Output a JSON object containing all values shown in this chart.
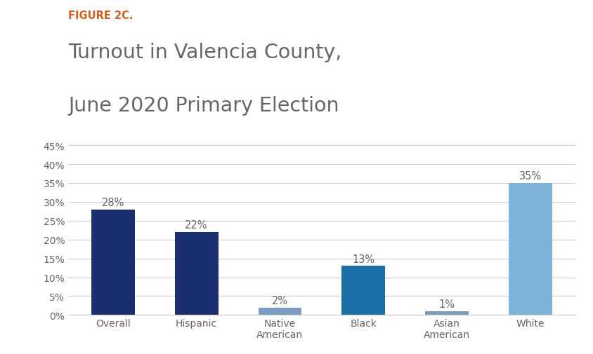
{
  "figure_label": "FIGURE 2C.",
  "title_line1": "Turnout in Valencia County,",
  "title_line2": "June 2020 Primary Election",
  "categories": [
    "Overall",
    "Hispanic",
    "Native\nAmerican",
    "Black",
    "Asian\nAmerican",
    "White"
  ],
  "values": [
    28,
    22,
    2,
    13,
    1,
    35
  ],
  "bar_colors": [
    "#1b2f6e",
    "#1b2f6e",
    "#7a9cbf",
    "#1e6fa8",
    "#7a9cbf",
    "#7fb3d9"
  ],
  "label_color": "#666666",
  "figure_label_color": "#d45f1e",
  "title_color": "#666666",
  "ylim": [
    0,
    47
  ],
  "yticks": [
    0,
    5,
    10,
    15,
    20,
    25,
    30,
    35,
    40,
    45
  ],
  "background_color": "#ffffff",
  "bar_width": 0.52,
  "annotation_fontsize": 10.5,
  "tick_label_fontsize": 10,
  "ytick_label_fontsize": 10,
  "figure_label_fontsize": 10.5,
  "title_fontsize": 20.5
}
